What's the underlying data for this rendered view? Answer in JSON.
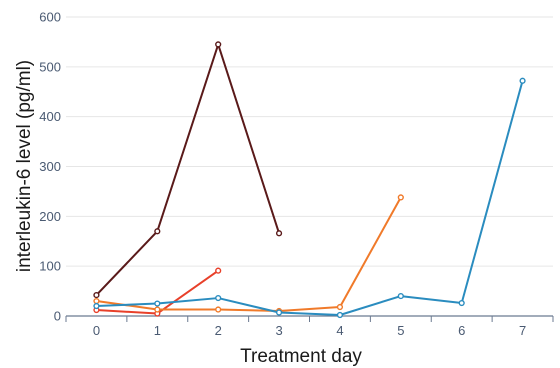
{
  "chart_data": {
    "type": "line",
    "xlabel": "Treatment day",
    "ylabel": "interleukin-6 level (pg/ml)",
    "xlim": [
      -0.5,
      7.5
    ],
    "ylim": [
      0,
      600
    ],
    "x_ticks": [
      0,
      1,
      2,
      3,
      4,
      5,
      6,
      7
    ],
    "y_ticks": [
      0,
      100,
      200,
      300,
      400,
      500,
      600
    ],
    "grid": "horizontal",
    "legend": "none",
    "colors": {
      "axis": "#6b7a90",
      "grid": "#e6e6e6",
      "tick_text": "#4a5a72"
    },
    "series": [
      {
        "color": "#5a1a1a",
        "points": [
          [
            0,
            42
          ],
          [
            1,
            170
          ],
          [
            2,
            545
          ],
          [
            3,
            166
          ]
        ]
      },
      {
        "color": "#e8402a",
        "points": [
          [
            0,
            12
          ],
          [
            1,
            5
          ],
          [
            2,
            91
          ]
        ]
      },
      {
        "color": "#f07a2a",
        "points": [
          [
            0,
            30
          ],
          [
            1,
            13
          ],
          [
            2,
            13
          ],
          [
            3,
            10
          ],
          [
            4,
            18
          ],
          [
            5,
            238
          ]
        ]
      },
      {
        "color": "#2a8cbf",
        "points": [
          [
            0,
            20
          ],
          [
            1,
            25
          ],
          [
            2,
            36
          ],
          [
            3,
            7
          ],
          [
            4,
            2
          ],
          [
            5,
            40
          ],
          [
            6,
            26
          ],
          [
            7,
            472
          ]
        ]
      }
    ]
  }
}
